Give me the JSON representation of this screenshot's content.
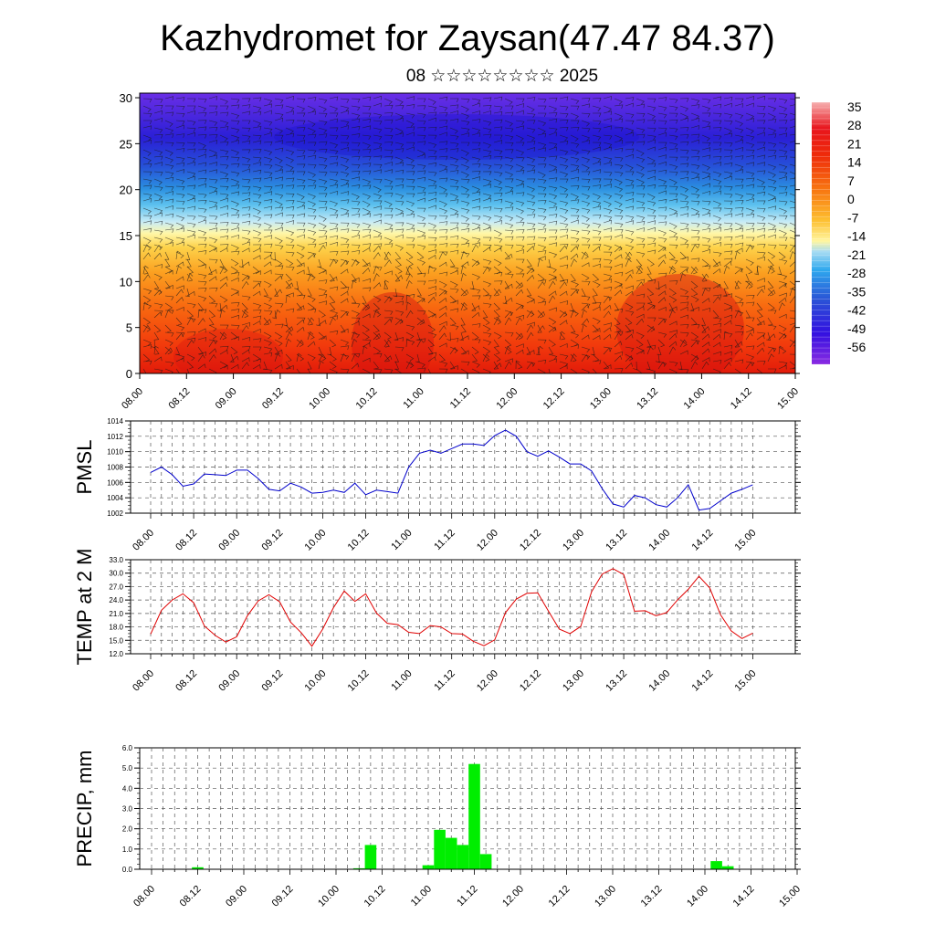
{
  "title": "Kazhydromet for Zaysan(47.47 84.37)",
  "date_line": "08 ☆☆☆☆☆☆☆☆ 2025",
  "colors": {
    "pmsl": "#0000cc",
    "temp": "#e00000",
    "precip": "#00ee00"
  },
  "chart_data": [
    {
      "type": "heatmap",
      "name": "vertical-cross-section",
      "y_ticks": [
        0,
        5,
        10,
        15,
        20,
        25,
        30
      ],
      "ylim": [
        0,
        30.5
      ],
      "x_ticks": [
        "08.00",
        "08.12",
        "09.00",
        "09.12",
        "10.00",
        "10.12",
        "11.00",
        "11.12",
        "12.00",
        "12.12",
        "13.00",
        "13.12",
        "14.00",
        "14.12",
        "15.00"
      ],
      "colorbar_labels": [
        "35",
        "28",
        "21",
        "14",
        "7",
        "0",
        "-7",
        "-14",
        "-21",
        "-28",
        "-35",
        "-42",
        "-49",
        "-56"
      ],
      "colorbar_range": [
        -60,
        38
      ]
    },
    {
      "type": "line",
      "name": "pmsl",
      "ylabel": "PMSL",
      "ylim": [
        1002,
        1014
      ],
      "y_ticks": [
        "1002",
        "1004",
        "1006",
        "1008",
        "1010",
        "1012",
        "1014"
      ],
      "x_ticks": [
        "08.00",
        "08.12",
        "09.00",
        "09.12",
        "10.00",
        "10.12",
        "11.00",
        "11.12",
        "12.00",
        "12.12",
        "13.00",
        "13.12",
        "14.00",
        "14.12",
        "15.00"
      ],
      "step_hours": 3,
      "values": [
        1007.3,
        1008.0,
        1007.0,
        1005.5,
        1005.8,
        1007.1,
        1007.0,
        1006.9,
        1007.6,
        1007.6,
        1006.5,
        1005.1,
        1004.9,
        1005.9,
        1005.4,
        1004.6,
        1004.7,
        1005.0,
        1004.7,
        1005.9,
        1004.4,
        1005.0,
        1004.8,
        1004.6,
        1008.0,
        1009.8,
        1010.2,
        1009.8,
        1010.4,
        1011.0,
        1011.0,
        1010.8,
        1012.1,
        1012.8,
        1012.0,
        1010.0,
        1009.4,
        1010.1,
        1009.3,
        1008.4,
        1008.4,
        1007.5,
        1005.2,
        1003.2,
        1002.8,
        1004.3,
        1004.0,
        1003.1,
        1002.8,
        1004.0,
        1005.7,
        1002.4,
        1002.6,
        1003.6,
        1004.6,
        1005.1,
        1005.7
      ]
    },
    {
      "type": "line",
      "name": "temp",
      "ylabel": "TEMP at 2 M",
      "ylim": [
        12,
        33
      ],
      "y_ticks": [
        "12.0",
        "15.0",
        "18.0",
        "21.0",
        "24.0",
        "27.0",
        "30.0",
        "33.0"
      ],
      "x_ticks": [
        "08.00",
        "08.12",
        "09.00",
        "09.12",
        "10.00",
        "10.12",
        "11.00",
        "11.12",
        "12.00",
        "12.12",
        "13.00",
        "13.12",
        "14.00",
        "14.12",
        "15.00"
      ],
      "step_hours": 3,
      "values": [
        16.4,
        21.7,
        24.0,
        25.4,
        23.4,
        18.2,
        16.1,
        14.6,
        15.8,
        20.5,
        23.8,
        25.2,
        23.6,
        19.1,
        16.7,
        13.7,
        17.5,
        22.3,
        26.0,
        23.7,
        25.4,
        21.1,
        18.8,
        18.5,
        16.8,
        16.5,
        18.3,
        18.0,
        16.5,
        16.4,
        14.8,
        13.8,
        15.1,
        21.2,
        24.2,
        25.5,
        25.6,
        21.5,
        17.5,
        16.5,
        18.1,
        25.8,
        29.8,
        31.0,
        29.7,
        21.5,
        21.6,
        20.5,
        21.2,
        24.0,
        26.4,
        29.3,
        26.7,
        20.7,
        17.1,
        15.4,
        16.6
      ]
    },
    {
      "type": "bar",
      "name": "precip",
      "ylabel": "PRECIP, mm",
      "ylim": [
        0,
        6
      ],
      "y_ticks": [
        "0.0",
        "1.0",
        "2.0",
        "3.0",
        "4.0",
        "5.0",
        "6.0"
      ],
      "x_ticks": [
        "08.00",
        "08.12",
        "09.00",
        "09.12",
        "10.00",
        "10.12",
        "11.00",
        "11.12",
        "12.00",
        "12.12",
        "13.00",
        "13.12",
        "14.00",
        "14.12",
        "15.00"
      ],
      "step_hours": 3,
      "values": [
        0,
        0,
        0,
        0,
        0.1,
        0,
        0,
        0,
        0,
        0,
        0,
        0,
        0,
        0,
        0,
        0,
        0,
        0,
        0.05,
        1.2,
        0,
        0,
        0,
        0,
        0.2,
        1.95,
        1.55,
        1.2,
        5.2,
        0.75,
        0,
        0,
        0,
        0,
        0,
        0,
        0,
        0,
        0,
        0,
        0,
        0,
        0,
        0,
        0,
        0,
        0,
        0,
        0,
        0.4,
        0.15,
        0,
        0,
        0,
        0,
        0,
        0
      ]
    }
  ]
}
